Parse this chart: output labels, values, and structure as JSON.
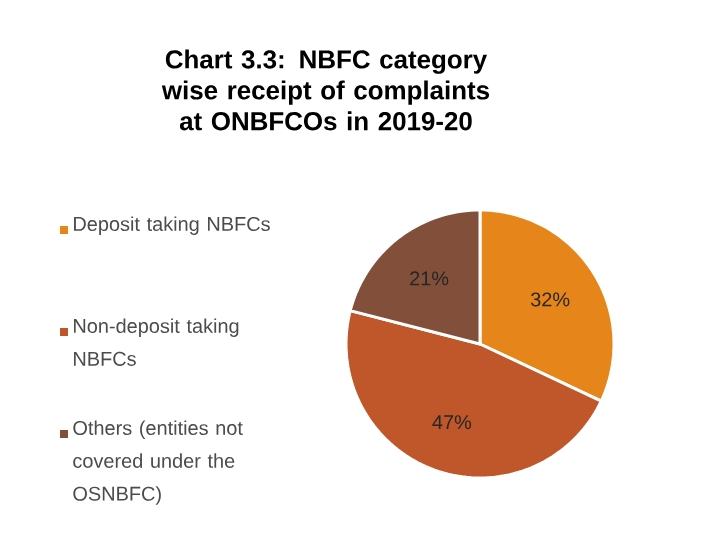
{
  "chart_data": {
    "type": "pie",
    "title": "Chart 3.3: NBFC category wise receipt of complaints at ONBFCOs in 2019-20",
    "categories": [
      "Deposit taking NBFCs",
      "Non-deposit taking NBFCs",
      "Others (entities not covered under the OSNBFC)"
    ],
    "values": [
      32,
      47,
      21
    ],
    "value_labels": [
      "32%",
      "47%",
      "21%"
    ],
    "colors": [
      "#e6861a",
      "#c0572a",
      "#82503a"
    ],
    "legend": "left"
  }
}
